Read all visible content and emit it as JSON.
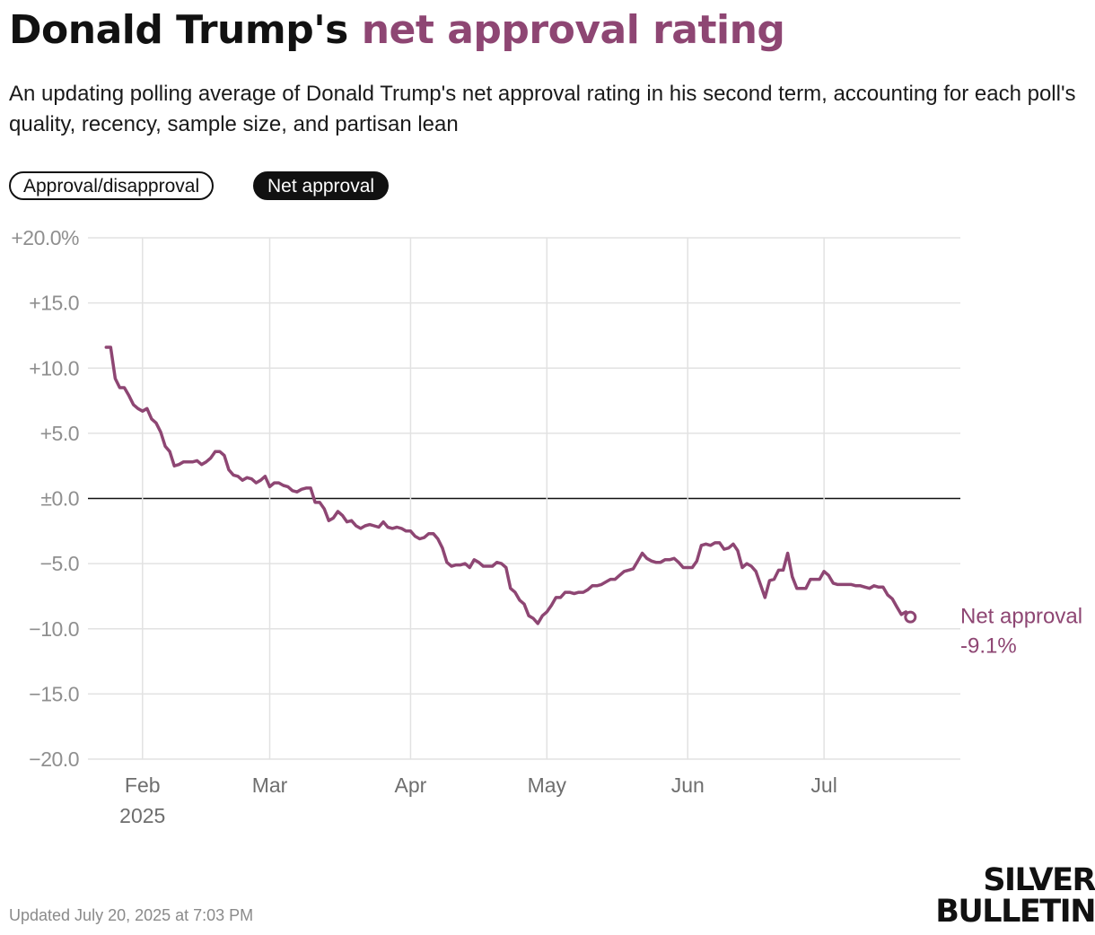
{
  "header": {
    "title_prefix": "Donald Trump's",
    "title_accent": "net approval rating",
    "subtitle": "An updating polling average of Donald Trump's net approval rating in his second term, accounting for each poll's quality, recency, sample size, and partisan lean"
  },
  "toggles": [
    {
      "label": "Approval/disapproval",
      "active": false
    },
    {
      "label": "Net approval",
      "active": true
    }
  ],
  "footer": {
    "updated": "Updated July 20, 2025 at 7:03 PM",
    "logo_line1": "SILVER",
    "logo_line2": "BULLETIN"
  },
  "colors": {
    "accent": "#8e4673",
    "grid": "#e2e2e2",
    "zero_line": "#111111",
    "tick_text": "#8f8f8f"
  },
  "chart_data": {
    "type": "line",
    "title": "",
    "xlabel": "",
    "ylabel": "",
    "x_range": [
      "2025-01-20",
      "2025-07-31"
    ],
    "ylim": [
      -20,
      20
    ],
    "y_ticks": [
      {
        "value": 20,
        "label": "+20.0%"
      },
      {
        "value": 15,
        "label": "+15.0"
      },
      {
        "value": 10,
        "label": "+10.0"
      },
      {
        "value": 5,
        "label": "+5.0"
      },
      {
        "value": 0,
        "label": "±0.0"
      },
      {
        "value": -5,
        "label": "−5.0"
      },
      {
        "value": -10,
        "label": "−10.0"
      },
      {
        "value": -15,
        "label": "−15.0"
      },
      {
        "value": -20,
        "label": "−20.0"
      }
    ],
    "x_ticks": [
      {
        "date": "2025-02-01",
        "label": "Feb",
        "sublabel": "2025"
      },
      {
        "date": "2025-03-01",
        "label": "Mar",
        "sublabel": ""
      },
      {
        "date": "2025-04-01",
        "label": "Apr",
        "sublabel": ""
      },
      {
        "date": "2025-05-01",
        "label": "May",
        "sublabel": ""
      },
      {
        "date": "2025-06-01",
        "label": "Jun",
        "sublabel": ""
      },
      {
        "date": "2025-07-01",
        "label": "Jul",
        "sublabel": ""
      }
    ],
    "grid": true,
    "series": [
      {
        "name": "Net approval",
        "color": "#8e4673",
        "end_label": "Net approval",
        "end_value_label": "-9.1%",
        "points": [
          [
            "2025-01-24",
            11.6
          ],
          [
            "2025-01-25",
            11.6
          ],
          [
            "2025-01-26",
            9.2
          ],
          [
            "2025-01-27",
            8.5
          ],
          [
            "2025-01-28",
            8.5
          ],
          [
            "2025-01-29",
            7.9
          ],
          [
            "2025-01-30",
            7.2
          ],
          [
            "2025-01-31",
            6.9
          ],
          [
            "2025-02-01",
            6.7
          ],
          [
            "2025-02-02",
            6.9
          ],
          [
            "2025-02-03",
            6.1
          ],
          [
            "2025-02-04",
            5.8
          ],
          [
            "2025-02-05",
            5.1
          ],
          [
            "2025-02-06",
            4.0
          ],
          [
            "2025-02-07",
            3.6
          ],
          [
            "2025-02-08",
            2.5
          ],
          [
            "2025-02-09",
            2.6
          ],
          [
            "2025-02-10",
            2.8
          ],
          [
            "2025-02-11",
            2.8
          ],
          [
            "2025-02-12",
            2.8
          ],
          [
            "2025-02-13",
            2.9
          ],
          [
            "2025-02-14",
            2.6
          ],
          [
            "2025-02-15",
            2.8
          ],
          [
            "2025-02-16",
            3.1
          ],
          [
            "2025-02-17",
            3.6
          ],
          [
            "2025-02-18",
            3.6
          ],
          [
            "2025-02-19",
            3.3
          ],
          [
            "2025-02-20",
            2.2
          ],
          [
            "2025-02-21",
            1.8
          ],
          [
            "2025-02-22",
            1.7
          ],
          [
            "2025-02-23",
            1.4
          ],
          [
            "2025-02-24",
            1.6
          ],
          [
            "2025-02-25",
            1.5
          ],
          [
            "2025-02-26",
            1.2
          ],
          [
            "2025-02-27",
            1.4
          ],
          [
            "2025-02-28",
            1.7
          ],
          [
            "2025-03-01",
            0.9
          ],
          [
            "2025-03-02",
            1.2
          ],
          [
            "2025-03-03",
            1.2
          ],
          [
            "2025-03-04",
            1.0
          ],
          [
            "2025-03-05",
            0.9
          ],
          [
            "2025-03-06",
            0.6
          ],
          [
            "2025-03-07",
            0.5
          ],
          [
            "2025-03-08",
            0.7
          ],
          [
            "2025-03-09",
            0.8
          ],
          [
            "2025-03-10",
            0.8
          ],
          [
            "2025-03-11",
            -0.3
          ],
          [
            "2025-03-12",
            -0.3
          ],
          [
            "2025-03-13",
            -0.8
          ],
          [
            "2025-03-14",
            -1.7
          ],
          [
            "2025-03-15",
            -1.5
          ],
          [
            "2025-03-16",
            -1.0
          ],
          [
            "2025-03-17",
            -1.3
          ],
          [
            "2025-03-18",
            -1.8
          ],
          [
            "2025-03-19",
            -1.7
          ],
          [
            "2025-03-20",
            -2.1
          ],
          [
            "2025-03-21",
            -2.3
          ],
          [
            "2025-03-22",
            -2.1
          ],
          [
            "2025-03-23",
            -2.0
          ],
          [
            "2025-03-24",
            -2.1
          ],
          [
            "2025-03-25",
            -2.2
          ],
          [
            "2025-03-26",
            -1.8
          ],
          [
            "2025-03-27",
            -2.2
          ],
          [
            "2025-03-28",
            -2.3
          ],
          [
            "2025-03-29",
            -2.2
          ],
          [
            "2025-03-30",
            -2.3
          ],
          [
            "2025-03-31",
            -2.5
          ],
          [
            "2025-04-01",
            -2.5
          ],
          [
            "2025-04-02",
            -2.9
          ],
          [
            "2025-04-03",
            -3.1
          ],
          [
            "2025-04-04",
            -3.0
          ],
          [
            "2025-04-05",
            -2.7
          ],
          [
            "2025-04-06",
            -2.7
          ],
          [
            "2025-04-07",
            -3.1
          ],
          [
            "2025-04-08",
            -3.8
          ],
          [
            "2025-04-09",
            -4.9
          ],
          [
            "2025-04-10",
            -5.2
          ],
          [
            "2025-04-11",
            -5.1
          ],
          [
            "2025-04-12",
            -5.1
          ],
          [
            "2025-04-13",
            -5.0
          ],
          [
            "2025-04-14",
            -5.3
          ],
          [
            "2025-04-15",
            -4.7
          ],
          [
            "2025-04-16",
            -4.9
          ],
          [
            "2025-04-17",
            -5.2
          ],
          [
            "2025-04-18",
            -5.2
          ],
          [
            "2025-04-19",
            -5.2
          ],
          [
            "2025-04-20",
            -4.9
          ],
          [
            "2025-04-21",
            -5.0
          ],
          [
            "2025-04-22",
            -5.3
          ],
          [
            "2025-04-23",
            -6.9
          ],
          [
            "2025-04-24",
            -7.2
          ],
          [
            "2025-04-25",
            -7.8
          ],
          [
            "2025-04-26",
            -8.1
          ],
          [
            "2025-04-27",
            -9.0
          ],
          [
            "2025-04-28",
            -9.2
          ],
          [
            "2025-04-29",
            -9.6
          ],
          [
            "2025-04-30",
            -9.0
          ],
          [
            "2025-05-01",
            -8.7
          ],
          [
            "2025-05-02",
            -8.2
          ],
          [
            "2025-05-03",
            -7.6
          ],
          [
            "2025-05-04",
            -7.6
          ],
          [
            "2025-05-05",
            -7.2
          ],
          [
            "2025-05-06",
            -7.2
          ],
          [
            "2025-05-07",
            -7.3
          ],
          [
            "2025-05-08",
            -7.2
          ],
          [
            "2025-05-09",
            -7.2
          ],
          [
            "2025-05-10",
            -7.0
          ],
          [
            "2025-05-11",
            -6.7
          ],
          [
            "2025-05-12",
            -6.7
          ],
          [
            "2025-05-13",
            -6.6
          ],
          [
            "2025-05-14",
            -6.4
          ],
          [
            "2025-05-15",
            -6.2
          ],
          [
            "2025-05-16",
            -6.2
          ],
          [
            "2025-05-17",
            -5.9
          ],
          [
            "2025-05-18",
            -5.6
          ],
          [
            "2025-05-19",
            -5.5
          ],
          [
            "2025-05-20",
            -5.4
          ],
          [
            "2025-05-21",
            -4.8
          ],
          [
            "2025-05-22",
            -4.2
          ],
          [
            "2025-05-23",
            -4.6
          ],
          [
            "2025-05-24",
            -4.8
          ],
          [
            "2025-05-25",
            -4.9
          ],
          [
            "2025-05-26",
            -4.9
          ],
          [
            "2025-05-27",
            -4.7
          ],
          [
            "2025-05-28",
            -4.7
          ],
          [
            "2025-05-29",
            -4.6
          ],
          [
            "2025-05-30",
            -4.9
          ],
          [
            "2025-05-31",
            -5.3
          ],
          [
            "2025-06-01",
            -5.3
          ],
          [
            "2025-06-02",
            -5.3
          ],
          [
            "2025-06-03",
            -4.8
          ],
          [
            "2025-06-04",
            -3.6
          ],
          [
            "2025-06-05",
            -3.5
          ],
          [
            "2025-06-06",
            -3.6
          ],
          [
            "2025-06-07",
            -3.4
          ],
          [
            "2025-06-08",
            -3.4
          ],
          [
            "2025-06-09",
            -3.9
          ],
          [
            "2025-06-10",
            -3.8
          ],
          [
            "2025-06-11",
            -3.5
          ],
          [
            "2025-06-12",
            -4.0
          ],
          [
            "2025-06-13",
            -5.3
          ],
          [
            "2025-06-14",
            -5.0
          ],
          [
            "2025-06-15",
            -5.2
          ],
          [
            "2025-06-16",
            -5.6
          ],
          [
            "2025-06-17",
            -6.6
          ],
          [
            "2025-06-18",
            -7.6
          ],
          [
            "2025-06-19",
            -6.3
          ],
          [
            "2025-06-20",
            -6.2
          ],
          [
            "2025-06-21",
            -5.5
          ],
          [
            "2025-06-22",
            -5.5
          ],
          [
            "2025-06-23",
            -4.2
          ],
          [
            "2025-06-24",
            -6.0
          ],
          [
            "2025-06-25",
            -6.9
          ],
          [
            "2025-06-26",
            -6.9
          ],
          [
            "2025-06-27",
            -6.9
          ],
          [
            "2025-06-28",
            -6.2
          ],
          [
            "2025-06-29",
            -6.2
          ],
          [
            "2025-06-30",
            -6.2
          ],
          [
            "2025-07-01",
            -5.6
          ],
          [
            "2025-07-02",
            -5.9
          ],
          [
            "2025-07-03",
            -6.5
          ],
          [
            "2025-07-04",
            -6.6
          ],
          [
            "2025-07-05",
            -6.6
          ],
          [
            "2025-07-06",
            -6.6
          ],
          [
            "2025-07-07",
            -6.6
          ],
          [
            "2025-07-08",
            -6.7
          ],
          [
            "2025-07-09",
            -6.7
          ],
          [
            "2025-07-10",
            -6.8
          ],
          [
            "2025-07-11",
            -6.9
          ],
          [
            "2025-07-12",
            -6.7
          ],
          [
            "2025-07-13",
            -6.8
          ],
          [
            "2025-07-14",
            -6.8
          ],
          [
            "2025-07-15",
            -7.4
          ],
          [
            "2025-07-16",
            -7.7
          ],
          [
            "2025-07-17",
            -8.3
          ],
          [
            "2025-07-18",
            -8.9
          ],
          [
            "2025-07-19",
            -8.7
          ],
          [
            "2025-07-20",
            -9.1
          ]
        ]
      }
    ]
  }
}
